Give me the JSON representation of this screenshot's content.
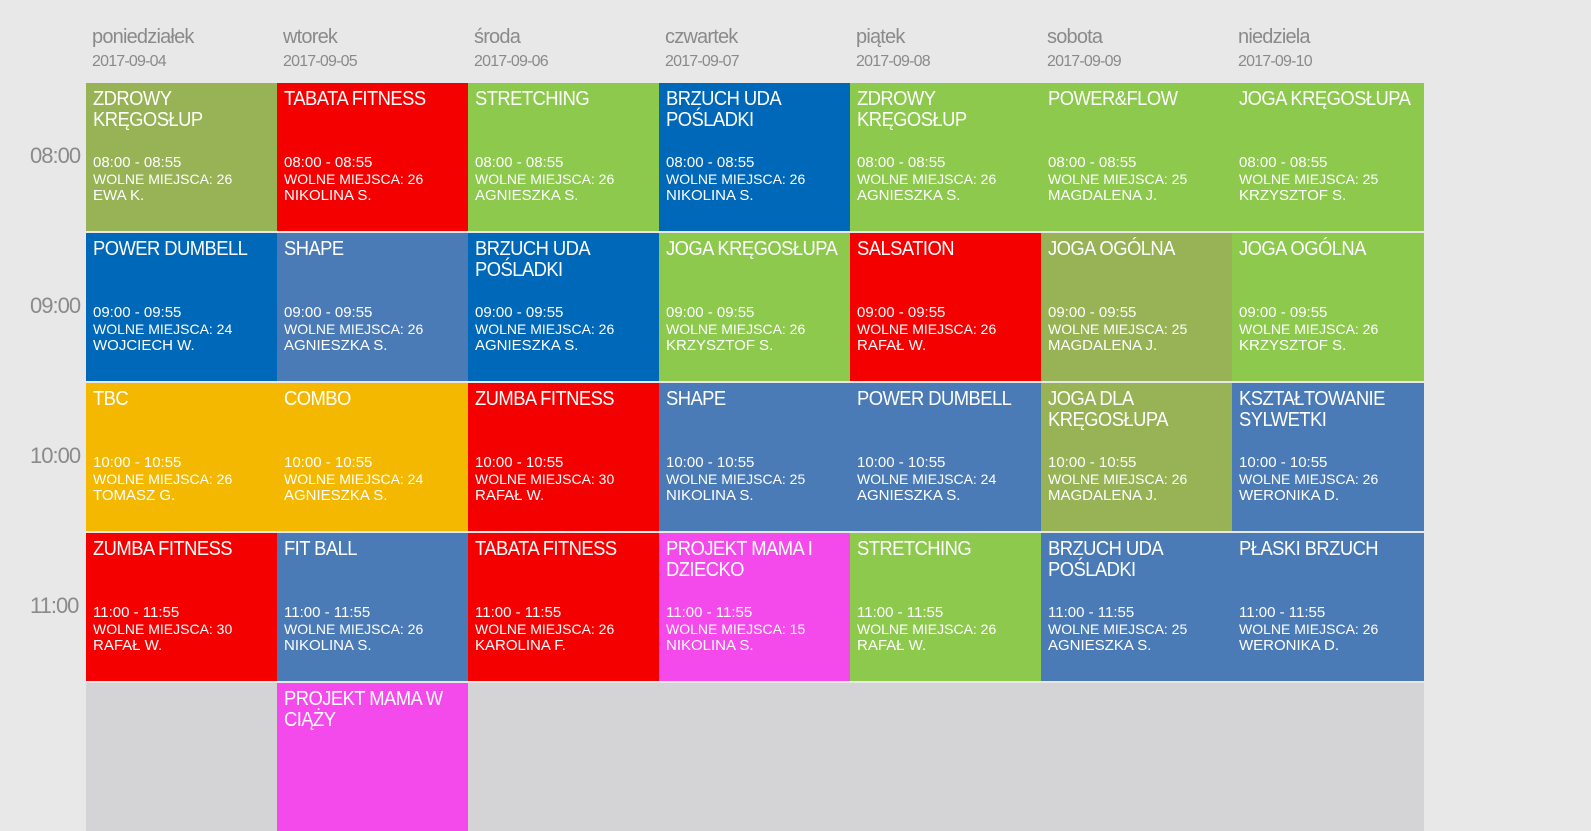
{
  "colors": {
    "olive": "#97b355",
    "red": "#f50000",
    "green": "#8cc94d",
    "blue": "#0068b8",
    "steel": "#4a7bb6",
    "amber": "#f5b800",
    "pink": "#f54aeb",
    "empty": "#d4d4d6"
  },
  "days": [
    {
      "name": "poniedziałek",
      "date": "2017-09-04"
    },
    {
      "name": "wtorek",
      "date": "2017-09-05"
    },
    {
      "name": "środa",
      "date": "2017-09-06"
    },
    {
      "name": "czwartek",
      "date": "2017-09-07"
    },
    {
      "name": "piątek",
      "date": "2017-09-08"
    },
    {
      "name": "sobota",
      "date": "2017-09-09"
    },
    {
      "name": "niedziela",
      "date": "2017-09-10"
    }
  ],
  "hours": [
    "08:00",
    "09:00",
    "10:00",
    "11:00"
  ],
  "classes": [
    [
      {
        "title": "ZDROWY KRĘGOSŁUP",
        "time": "08:00 - 08:55",
        "seats": "WOLNE MIEJSCA: 26",
        "trainer": "EWA K.",
        "color": "olive"
      },
      {
        "title": "TABATA FITNESS",
        "time": "08:00 - 08:55",
        "seats": "WOLNE MIEJSCA: 26",
        "trainer": "NIKOLINA S.",
        "color": "red"
      },
      {
        "title": "STRETCHING",
        "time": "08:00 - 08:55",
        "seats": "WOLNE MIEJSCA: 26",
        "trainer": "AGNIESZKA S.",
        "color": "green"
      },
      {
        "title": "BRZUCH UDA POŚLADKI",
        "time": "08:00 - 08:55",
        "seats": "WOLNE MIEJSCA: 26",
        "trainer": "NIKOLINA S.",
        "color": "blue"
      },
      {
        "title": "ZDROWY KRĘGOSŁUP",
        "time": "08:00 - 08:55",
        "seats": "WOLNE MIEJSCA: 26",
        "trainer": "AGNIESZKA S.",
        "color": "green"
      },
      {
        "title": "POWER&FLOW",
        "time": "08:00 - 08:55",
        "seats": "WOLNE MIEJSCA: 25",
        "trainer": "MAGDALENA J.",
        "color": "green"
      },
      {
        "title": "JOGA KRĘGOSŁUPA",
        "time": "08:00 - 08:55",
        "seats": "WOLNE MIEJSCA: 25",
        "trainer": "KRZYSZTOF S.",
        "color": "green"
      }
    ],
    [
      {
        "title": "POWER DUMBELL",
        "time": "09:00 - 09:55",
        "seats": "WOLNE MIEJSCA: 24",
        "trainer": "WOJCIECH W.",
        "color": "blue"
      },
      {
        "title": "SHAPE",
        "time": "09:00 - 09:55",
        "seats": "WOLNE MIEJSCA: 26",
        "trainer": "AGNIESZKA S.",
        "color": "steel"
      },
      {
        "title": "BRZUCH UDA POŚLADKI",
        "time": "09:00 - 09:55",
        "seats": "WOLNE MIEJSCA: 26",
        "trainer": "AGNIESZKA S.",
        "color": "blue"
      },
      {
        "title": "JOGA KRĘGOSŁUPA",
        "time": "09:00 - 09:55",
        "seats": "WOLNE MIEJSCA: 26",
        "trainer": "KRZYSZTOF S.",
        "color": "green"
      },
      {
        "title": "SALSATION",
        "time": "09:00 - 09:55",
        "seats": "WOLNE MIEJSCA: 26",
        "trainer": "RAFAŁ W.",
        "color": "red"
      },
      {
        "title": "JOGA OGÓLNA",
        "time": "09:00 - 09:55",
        "seats": "WOLNE MIEJSCA: 25",
        "trainer": "MAGDALENA J.",
        "color": "olive"
      },
      {
        "title": "JOGA OGÓLNA",
        "time": "09:00 - 09:55",
        "seats": "WOLNE MIEJSCA: 26",
        "trainer": "KRZYSZTOF S.",
        "color": "green"
      }
    ],
    [
      {
        "title": "TBC",
        "time": "10:00 - 10:55",
        "seats": "WOLNE MIEJSCA: 26",
        "trainer": "TOMASZ G.",
        "color": "amber"
      },
      {
        "title": "COMBO",
        "time": "10:00 - 10:55",
        "seats": "WOLNE MIEJSCA: 24",
        "trainer": "AGNIESZKA S.",
        "color": "amber"
      },
      {
        "title": "ZUMBA FITNESS",
        "time": "10:00 - 10:55",
        "seats": "WOLNE MIEJSCA: 30",
        "trainer": "RAFAŁ W.",
        "color": "red"
      },
      {
        "title": "SHAPE",
        "time": "10:00 - 10:55",
        "seats": "WOLNE MIEJSCA: 25",
        "trainer": "NIKOLINA S.",
        "color": "steel"
      },
      {
        "title": "POWER DUMBELL",
        "time": "10:00 - 10:55",
        "seats": "WOLNE MIEJSCA: 24",
        "trainer": "AGNIESZKA S.",
        "color": "steel"
      },
      {
        "title": "JOGA DLA KRĘGOSŁUPA",
        "time": "10:00 - 10:55",
        "seats": "WOLNE MIEJSCA: 26",
        "trainer": "MAGDALENA J.",
        "color": "olive"
      },
      {
        "title": "KSZTAŁTOWANIE SYLWETKI",
        "time": "10:00 - 10:55",
        "seats": "WOLNE MIEJSCA: 26",
        "trainer": "WERONIKA D.",
        "color": "steel"
      }
    ],
    [
      {
        "title": "ZUMBA FITNESS",
        "time": "11:00 - 11:55",
        "seats": "WOLNE MIEJSCA: 30",
        "trainer": "RAFAŁ W.",
        "color": "red"
      },
      {
        "title": "FIT BALL",
        "time": "11:00 - 11:55",
        "seats": "WOLNE MIEJSCA: 26",
        "trainer": "NIKOLINA S.",
        "color": "steel"
      },
      {
        "title": "TABATA FITNESS",
        "time": "11:00 - 11:55",
        "seats": "WOLNE MIEJSCA: 26",
        "trainer": "KAROLINA F.",
        "color": "red"
      },
      {
        "title": "PROJEKT MAMA I DZIECKO",
        "time": "11:00 - 11:55",
        "seats": "WOLNE MIEJSCA: 15",
        "trainer": "NIKOLINA S.",
        "color": "pink"
      },
      {
        "title": "STRETCHING",
        "time": "11:00 - 11:55",
        "seats": "WOLNE MIEJSCA: 26",
        "trainer": "RAFAŁ W.",
        "color": "green"
      },
      {
        "title": "BRZUCH UDA POŚLADKI",
        "time": "11:00 - 11:55",
        "seats": "WOLNE MIEJSCA: 25",
        "trainer": "AGNIESZKA S.",
        "color": "steel"
      },
      {
        "title": "PŁASKI BRZUCH",
        "time": "11:00 - 11:55",
        "seats": "WOLNE MIEJSCA: 26",
        "trainer": "WERONIKA D.",
        "color": "steel"
      }
    ],
    [
      null,
      {
        "title": "PROJEKT MAMA W CIĄŻY",
        "time": "",
        "seats": "",
        "trainer": "",
        "color": "pink"
      },
      null,
      null,
      null,
      null,
      null
    ]
  ]
}
